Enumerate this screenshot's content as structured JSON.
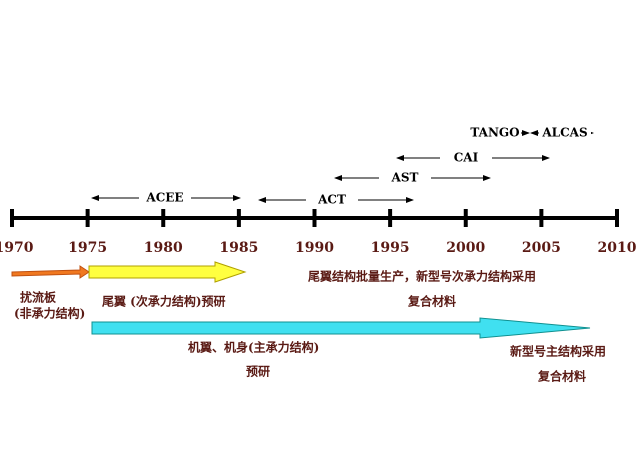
{
  "timeline": {
    "years": [
      "1970",
      "1975",
      "1980",
      "1985",
      "1990",
      "1995",
      "2000",
      "2005",
      "2010"
    ],
    "programs": [
      "ACEE",
      "ACT",
      "AST",
      "CAI",
      "TANGO",
      "ALCAS"
    ],
    "phases": [
      {
        "label": "扰流板",
        "sublabel": "(非承力结构)"
      },
      {
        "label": "尾翼 (次承力结构)预研"
      },
      {
        "label": "机翼、机身(主承力结构)",
        "sublabel": "预研"
      }
    ],
    "notes": [
      {
        "label": "尾翼结构批量生产，新型号次承力结构采用",
        "sublabel": "复合材料"
      },
      {
        "label": "新型号主结构采用",
        "sublabel": "复合材料"
      }
    ]
  }
}
